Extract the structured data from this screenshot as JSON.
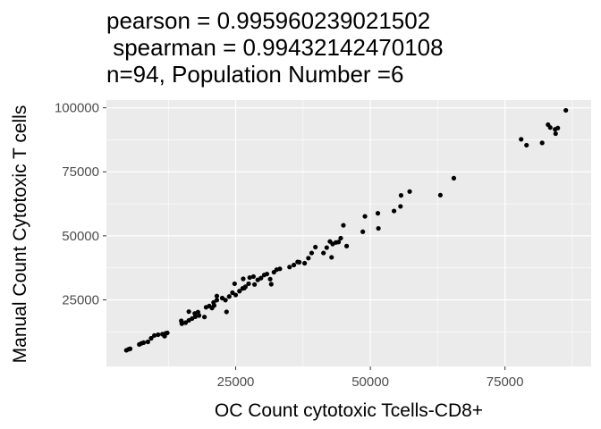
{
  "chart_data": {
    "type": "scatter",
    "title_lines": [
      "pearson = 0.995960239021502",
      " spearman = 0.99432142470108",
      "n=94, Population Number =6"
    ],
    "xlabel": "OC Count cytotoxic Tcells-CD8+",
    "ylabel": "Manual Count Cytotoxic T cells",
    "xlim": [
      1000,
      91000
    ],
    "ylim": [
      -1000,
      103000
    ],
    "x_ticks": [
      25000,
      50000,
      75000
    ],
    "x_tick_labels": [
      "25000",
      "50000",
      "75000"
    ],
    "y_ticks": [
      25000,
      50000,
      75000,
      100000
    ],
    "y_tick_labels": [
      "25000",
      "50000",
      "75000",
      "100000"
    ],
    "grid": true,
    "panel_background": "#ebebeb",
    "grid_color": "#ffffff",
    "point_color": "#000000",
    "points": [
      [
        4700,
        5300
      ],
      [
        5100,
        5700
      ],
      [
        5400,
        5900
      ],
      [
        7100,
        7600
      ],
      [
        7500,
        8000
      ],
      [
        7900,
        8300
      ],
      [
        8700,
        8600
      ],
      [
        9300,
        10000
      ],
      [
        9900,
        11100
      ],
      [
        10600,
        11400
      ],
      [
        11400,
        11600
      ],
      [
        12000,
        11900
      ],
      [
        12300,
        12100
      ],
      [
        11800,
        10800
      ],
      [
        15000,
        15700
      ],
      [
        15700,
        16100
      ],
      [
        16300,
        17000
      ],
      [
        16900,
        17700
      ],
      [
        17500,
        18400
      ],
      [
        18200,
        18900
      ],
      [
        16300,
        20400
      ],
      [
        17400,
        19700
      ],
      [
        19500,
        22100
      ],
      [
        20100,
        22600
      ],
      [
        20600,
        21800
      ],
      [
        21000,
        22800
      ],
      [
        21500,
        24900
      ],
      [
        21500,
        26500
      ],
      [
        22500,
        25700
      ],
      [
        23100,
        24900
      ],
      [
        23800,
        26300
      ],
      [
        24400,
        27800
      ],
      [
        25000,
        26900
      ],
      [
        25700,
        28400
      ],
      [
        26300,
        29500
      ],
      [
        26800,
        30100
      ],
      [
        27400,
        31300
      ],
      [
        26400,
        33200
      ],
      [
        27600,
        33700
      ],
      [
        28300,
        34100
      ],
      [
        29100,
        32800
      ],
      [
        29700,
        33500
      ],
      [
        30300,
        34700
      ],
      [
        30800,
        35100
      ],
      [
        31400,
        33100
      ],
      [
        32100,
        35800
      ],
      [
        32600,
        36800
      ],
      [
        23300,
        20300
      ],
      [
        24800,
        31300
      ],
      [
        31600,
        31100
      ],
      [
        35000,
        37800
      ],
      [
        35800,
        38600
      ],
      [
        36500,
        39800
      ],
      [
        37800,
        39300
      ],
      [
        38500,
        41300
      ],
      [
        39100,
        43300
      ],
      [
        41300,
        43300
      ],
      [
        41900,
        45400
      ],
      [
        42500,
        47800
      ],
      [
        43000,
        46800
      ],
      [
        43600,
        47400
      ],
      [
        44100,
        47600
      ],
      [
        44500,
        49100
      ],
      [
        45000,
        54100
      ],
      [
        45600,
        46000
      ],
      [
        42800,
        41600
      ],
      [
        48600,
        51600
      ],
      [
        49000,
        57600
      ],
      [
        51400,
        58800
      ],
      [
        51500,
        52900
      ],
      [
        54400,
        59700
      ],
      [
        55600,
        61500
      ],
      [
        55700,
        65800
      ],
      [
        57300,
        67300
      ],
      [
        63000,
        65900
      ],
      [
        65500,
        72500
      ],
      [
        78000,
        87700
      ],
      [
        79000,
        85400
      ],
      [
        81900,
        86300
      ],
      [
        83000,
        93400
      ],
      [
        83400,
        92300
      ],
      [
        84300,
        91600
      ],
      [
        84400,
        89900
      ],
      [
        84800,
        92100
      ],
      [
        86300,
        99000
      ],
      [
        18000,
        20200
      ],
      [
        19200,
        18300
      ],
      [
        26600,
        29600
      ],
      [
        28500,
        31000
      ],
      [
        36800,
        39700
      ],
      [
        39800,
        45600
      ],
      [
        14900,
        16800
      ],
      [
        20900,
        24000
      ],
      [
        33200,
        37100
      ]
    ]
  }
}
